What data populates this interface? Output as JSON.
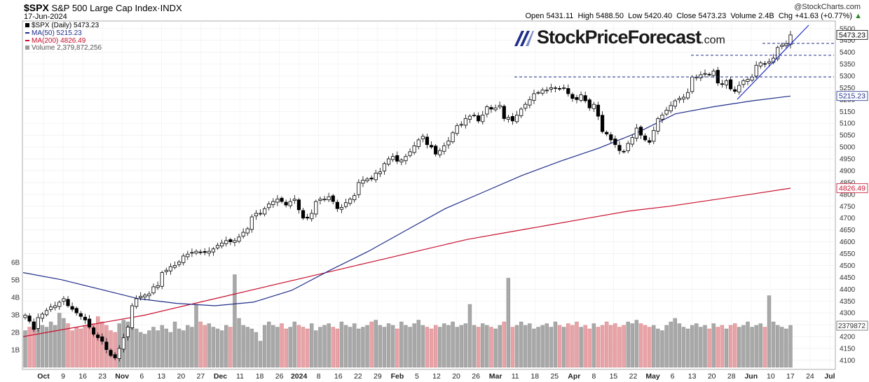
{
  "header": {
    "symbol": "$SPX",
    "name": "S&P 500 Large Cap Index",
    "exchange": "INDX",
    "date": "17-Jun-2024",
    "open_label": "Open",
    "open": "5431.11",
    "high_label": "High",
    "high": "5488.50",
    "low_label": "Low",
    "low": "5420.40",
    "close_label": "Close",
    "close": "5473.23",
    "volume_label": "Volume",
    "volume": "2.4B",
    "chg_label": "Chg",
    "chg": "+41.63 (+0.77%)",
    "arrow": "▲",
    "credit": "@StockCharts.com"
  },
  "legend": {
    "price": "$SPX (Daily) 5473.23",
    "ma50": "MA(50) 5215.23",
    "ma200": "MA(200) 4826.49",
    "volume": "Volume 2,379,872,256"
  },
  "brand": {
    "name": "StockPriceForecast",
    "suffix": ".com"
  },
  "colors": {
    "ma50": "#1f2e8a",
    "ma200": "#c8102e",
    "vol_up": "#a8a8a8",
    "vol_down": "#e8a3a8",
    "candle": "#000000",
    "trend": "#1f2ec8",
    "support": "#1f2e8a"
  },
  "chart_data": {
    "type": "candlestick",
    "y_axis_labels": [
      "5500",
      "5450",
      "5400",
      "5350",
      "5300",
      "5250",
      "5200",
      "5150",
      "5100",
      "5050",
      "5000",
      "4950",
      "4900",
      "4850",
      "4800",
      "4750",
      "4700",
      "4650",
      "4600",
      "4550",
      "4500",
      "4450",
      "4400",
      "4350",
      "4300",
      "4250",
      "4200",
      "4150",
      "4100"
    ],
    "ylim": [
      4085,
      5520
    ],
    "price_tags": [
      "5473.23",
      "5215.23",
      "4826.49",
      "2379872"
    ],
    "volume_labels": [
      "6B",
      "5B",
      "4B",
      "3B",
      "2B",
      "1B"
    ],
    "x_labels": [
      "Oct",
      "9",
      "16",
      "23",
      "Nov",
      "6",
      "13",
      "20",
      "27",
      "Dec",
      "11",
      "18",
      "26",
      "2024",
      "8",
      "16",
      "22",
      "29",
      "Feb",
      "5",
      "12",
      "20",
      "26",
      "Mar",
      "11",
      "18",
      "25",
      "Apr",
      "8",
      "15",
      "22",
      "May",
      "6",
      "13",
      "20",
      "28",
      "Jun",
      "10",
      "17",
      "24",
      "Jul"
    ],
    "close_series": [
      4290,
      4265,
      4230,
      4280,
      4295,
      4310,
      4325,
      4330,
      4345,
      4360,
      4330,
      4315,
      4300,
      4285,
      4270,
      4240,
      4210,
      4195,
      4180,
      4145,
      4120,
      4110,
      4150,
      4195,
      4240,
      4330,
      4360,
      4370,
      4375,
      4380,
      4410,
      4415,
      4470,
      4480,
      4495,
      4500,
      4515,
      4540,
      4548,
      4555,
      4560,
      4555,
      4555,
      4560,
      4570,
      4585,
      4595,
      4605,
      4600,
      4605,
      4620,
      4640,
      4655,
      4705,
      4720,
      4720,
      4740,
      4760,
      4770,
      4780,
      4770,
      4755,
      4770,
      4780,
      4735,
      4700,
      4700,
      4720,
      4770,
      4780,
      4780,
      4790,
      4770,
      4740,
      4745,
      4765,
      4780,
      4795,
      4850,
      4860,
      4865,
      4865,
      4890,
      4895,
      4930,
      4950,
      4960,
      4940,
      4945,
      4960,
      4980,
      5005,
      5030,
      5045,
      5010,
      5000,
      4970,
      4985,
      5005,
      5025,
      5060,
      5090,
      5095,
      5120,
      5130,
      5135,
      5110,
      5135,
      5170,
      5160,
      5165,
      5175,
      5120,
      5125,
      5110,
      5135,
      5160,
      5180,
      5200,
      5225,
      5230,
      5240,
      5240,
      5250,
      5250,
      5245,
      5250,
      5225,
      5205,
      5200,
      5220,
      5195,
      5165,
      5180,
      5130,
      5065,
      5055,
      5030,
      5010,
      4985,
      4980,
      5015,
      5040,
      5080,
      5050,
      5030,
      5020,
      5070,
      5120,
      5135,
      5155,
      5175,
      5195,
      5205,
      5210,
      5230,
      5295,
      5295,
      5305,
      5310,
      5305,
      5320,
      5270,
      5265,
      5280,
      5245,
      5235,
      5260,
      5280,
      5285,
      5295,
      5345,
      5355,
      5350,
      5360,
      5375,
      5420,
      5430,
      5435,
      5473
    ],
    "ma50_series": [
      4470,
      4440,
      4400,
      4360,
      4340,
      4330,
      4345,
      4395,
      4480,
      4560,
      4650,
      4740,
      4810,
      4880,
      4940,
      4995,
      5060,
      5140,
      5170,
      5195,
      5215
    ],
    "ma200_series": [
      4200,
      4230,
      4260,
      4290,
      4330,
      4370,
      4410,
      4450,
      4490,
      4530,
      4570,
      4610,
      4640,
      4670,
      4700,
      4730,
      4750,
      4775,
      4800,
      4826
    ],
    "volume_series_b": [
      2.1,
      2.3,
      2.2,
      2.6,
      2.4,
      2.3,
      2.6,
      2.4,
      3.1,
      2.8,
      2.5,
      2.1,
      2.3,
      2.2,
      2.4,
      2.7,
      2.5,
      2.9,
      2.6,
      2.4,
      2.1,
      2.0,
      2.5,
      2.7,
      2.6,
      2.3,
      2.2,
      2.0,
      1.9,
      2.1,
      2.3,
      2.1,
      2.4,
      2.2,
      2.0,
      2.6,
      2.2,
      2.1,
      2.4,
      2.3,
      3.6,
      2.6,
      2.4,
      2.5,
      2.3,
      2.2,
      2.1,
      2.4,
      2.3,
      5.3,
      2.8,
      2.4,
      2.3,
      2.2,
      2.0,
      1.5,
      2.4,
      2.6,
      2.4,
      2.3,
      2.5,
      2.2,
      2.3,
      2.6,
      2.4,
      2.3,
      2.2,
      2.5,
      2.1,
      2.3,
      2.4,
      2.5,
      2.3,
      2.2,
      2.6,
      2.4,
      2.3,
      2.5,
      2.2,
      2.3,
      2.4,
      2.6,
      2.7,
      2.4,
      2.3,
      2.5,
      2.4,
      2.2,
      2.6,
      2.4,
      2.3,
      2.5,
      2.7,
      2.4,
      2.3,
      2.2,
      2.4,
      2.3,
      2.5,
      2.4,
      2.6,
      2.3,
      2.4,
      2.5,
      3.6,
      2.4,
      2.3,
      2.5,
      2.4,
      2.3,
      2.2,
      2.4,
      2.6,
      5.1,
      2.3,
      2.4,
      2.6,
      2.4,
      2.5,
      2.2,
      2.3,
      2.4,
      2.5,
      2.3,
      2.6,
      2.4,
      2.3,
      2.5,
      2.4,
      2.6,
      2.3,
      2.4,
      2.2,
      2.5,
      2.3,
      2.4,
      2.6,
      2.4,
      2.5,
      2.3,
      2.4,
      2.6,
      2.5,
      2.7,
      2.5,
      2.4,
      2.3,
      2.4,
      2.2,
      2.1,
      2.4,
      2.6,
      2.8,
      2.5,
      2.3,
      2.2,
      2.4,
      2.5,
      2.3,
      2.4,
      2.2,
      2.5,
      2.3,
      2.4,
      2.2,
      2.4,
      2.5,
      2.3,
      2.4,
      2.6,
      2.3,
      2.4,
      2.5,
      2.3,
      4.1,
      2.6,
      2.4,
      2.3,
      2.2,
      2.4,
      2.5,
      2.7,
      2.6,
      2.5,
      2.38
    ]
  }
}
